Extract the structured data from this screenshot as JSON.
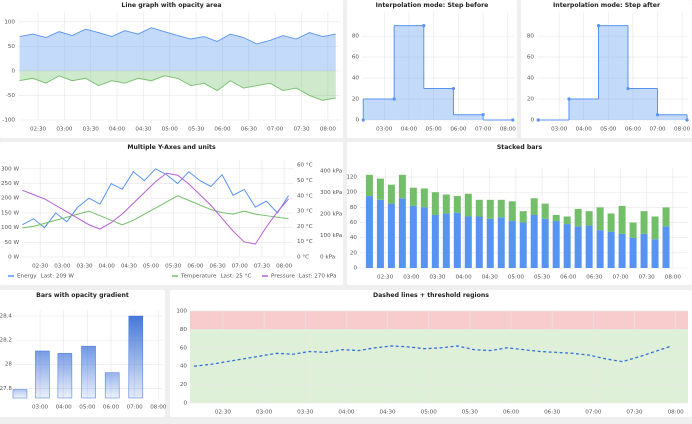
{
  "chart_data": [
    {
      "type": "area",
      "title": "Line graph with opacity area",
      "x": [
        2.15,
        2.4,
        2.65,
        2.9,
        3.15,
        3.4,
        3.65,
        3.9,
        4.15,
        4.4,
        4.65,
        4.9,
        5.15,
        5.4,
        5.65,
        5.9,
        6.15,
        6.4,
        6.65,
        6.9,
        7.15,
        7.4,
        7.65,
        7.9,
        8.15
      ],
      "series": [
        {
          "color": "#5794f2",
          "values": [
            70,
            75,
            68,
            80,
            72,
            85,
            78,
            70,
            82,
            75,
            88,
            80,
            72,
            65,
            70,
            60,
            75,
            68,
            55,
            62,
            72,
            65,
            78,
            70,
            75
          ]
        },
        {
          "color": "#73bf69",
          "values": [
            -20,
            -15,
            -25,
            -10,
            -20,
            -15,
            -30,
            -20,
            -25,
            -15,
            -20,
            -10,
            -15,
            -30,
            -25,
            -40,
            -20,
            -35,
            -30,
            -25,
            -40,
            -35,
            -50,
            -60,
            -55
          ]
        }
      ],
      "xlim": [
        2.12,
        8.23
      ],
      "ylim": [
        -100,
        120
      ],
      "yticks": [
        -100,
        -50,
        0,
        50,
        100
      ],
      "xticks": [
        {
          "value": 2.5,
          "label": "02:30"
        },
        {
          "value": 3,
          "label": "03:00"
        },
        {
          "value": 3.5,
          "label": "03:30"
        },
        {
          "value": 4,
          "label": "04:00"
        },
        {
          "value": 4.5,
          "label": "04:30"
        },
        {
          "value": 5,
          "label": "05:00"
        },
        {
          "value": 5.5,
          "label": "05:30"
        },
        {
          "value": 6,
          "label": "06:00"
        },
        {
          "value": 6.5,
          "label": "06:30"
        },
        {
          "value": 7,
          "label": "07:00"
        },
        {
          "value": 7.5,
          "label": "07:30"
        },
        {
          "value": 8,
          "label": "08:00"
        }
      ],
      "grid": true
    },
    {
      "type": "step",
      "interpolation": "before",
      "title": "Interpolation mode: Step before",
      "x": [
        2.15,
        3.4,
        4.6,
        5.8,
        7.0,
        8.2
      ],
      "series": [
        {
          "color": "#5794f2",
          "values": [
            0,
            20,
            90,
            30,
            5,
            0
          ]
        }
      ],
      "xlim": [
        2.1,
        8.25
      ],
      "ylim": [
        0,
        103
      ],
      "yticks": [
        0,
        20,
        40,
        60,
        80
      ],
      "xticks": [
        {
          "value": 3,
          "label": "03:00"
        },
        {
          "value": 4,
          "label": "04:00"
        },
        {
          "value": 5,
          "label": "05:00"
        },
        {
          "value": 6,
          "label": "06:00"
        },
        {
          "value": 7,
          "label": "07:00"
        },
        {
          "value": 8,
          "label": "08:00"
        }
      ],
      "grid": true
    },
    {
      "type": "step",
      "interpolation": "after",
      "title": "Interpolation mode: Step after",
      "x": [
        2.15,
        3.4,
        4.6,
        5.8,
        7.0,
        8.2
      ],
      "series": [
        {
          "color": "#5794f2",
          "values": [
            0,
            20,
            90,
            30,
            5,
            0
          ]
        }
      ],
      "xlim": [
        2.1,
        8.24
      ],
      "ylim": [
        0,
        103
      ],
      "yticks": [
        0,
        20,
        40,
        60,
        80
      ],
      "xticks": [
        {
          "value": 3,
          "label": "03:00"
        },
        {
          "value": 4,
          "label": "04:00"
        },
        {
          "value": 5,
          "label": "05:00"
        },
        {
          "value": 6,
          "label": "06:00"
        },
        {
          "value": 7,
          "label": "07:00"
        },
        {
          "value": 8,
          "label": "08:00"
        }
      ],
      "grid": true
    },
    {
      "type": "line",
      "title": "Multiple Y-Axes and units",
      "x": [
        2.1,
        2.35,
        2.6,
        2.85,
        3.1,
        3.35,
        3.6,
        3.85,
        4.1,
        4.35,
        4.6,
        4.85,
        5.1,
        5.35,
        5.6,
        5.85,
        6.1,
        6.35,
        6.6,
        6.85,
        7.1,
        7.35,
        7.6,
        7.85,
        8.1
      ],
      "series": [
        {
          "name": "Energy",
          "legend_label": "Last: 209 W",
          "color": "#5794f2",
          "values": [
            110,
            130,
            100,
            150,
            120,
            170,
            200,
            180,
            250,
            230,
            290,
            260,
            300,
            280,
            250,
            290,
            260,
            240,
            280,
            210,
            230,
            170,
            190,
            150,
            209
          ]
        },
        {
          "name": "Temperature",
          "legend_label": "Last: 25 °C",
          "axis": "y2",
          "color": "#73bf69",
          "values": [
            19,
            20,
            22,
            24,
            26,
            28,
            30,
            27,
            24,
            21,
            24,
            28,
            32,
            36,
            40,
            37,
            34,
            31,
            29,
            28,
            30,
            28,
            27,
            26,
            25
          ]
        },
        {
          "name": "Pressure",
          "legend_label": "Last: 270 kPa",
          "axis": "y3",
          "color": "#b65fd4",
          "values": [
            310,
            290,
            270,
            240,
            210,
            180,
            150,
            130,
            160,
            200,
            250,
            300,
            350,
            390,
            380,
            340,
            290,
            240,
            180,
            120,
            70,
            60,
            140,
            210,
            270
          ]
        }
      ],
      "xlim": [
        2.09,
        8.2
      ],
      "ylim": [
        0,
        330
      ],
      "yticks": [
        {
          "value": 0,
          "label": "0 W"
        },
        {
          "value": 50,
          "label": "50 W"
        },
        {
          "value": 100,
          "label": "100 W"
        },
        {
          "value": 150,
          "label": "150 W"
        },
        {
          "value": 200,
          "label": "200 W"
        },
        {
          "value": 250,
          "label": "250 W"
        },
        {
          "value": 300,
          "label": "300 W"
        }
      ],
      "y2lim": [
        0,
        63.4
      ],
      "y2ticks": [
        {
          "value": 0,
          "label": "0 °C"
        },
        {
          "value": 10,
          "label": "10 °C"
        },
        {
          "value": 20,
          "label": "20 °C"
        },
        {
          "value": 30,
          "label": "30 °C"
        },
        {
          "value": 40,
          "label": "40 °C"
        },
        {
          "value": 50,
          "label": "50 °C"
        },
        {
          "value": 60,
          "label": "60 °C"
        }
      ],
      "y3lim": [
        0,
        451
      ],
      "y3ticks": [
        {
          "value": 0,
          "label": "0 kPa"
        },
        {
          "value": 100,
          "label": "100 kPa"
        },
        {
          "value": 200,
          "label": "200 kPa"
        },
        {
          "value": 300,
          "label": "300 kPa"
        },
        {
          "value": 400,
          "label": "400 kPa"
        }
      ],
      "xticks": [
        {
          "value": 2.5,
          "label": "02:30"
        },
        {
          "value": 3,
          "label": "03:00"
        },
        {
          "value": 3.5,
          "label": "03:30"
        },
        {
          "value": 4,
          "label": "04:00"
        },
        {
          "value": 4.5,
          "label": "04:30"
        },
        {
          "value": 5,
          "label": "05:00"
        },
        {
          "value": 5.5,
          "label": "05:30"
        },
        {
          "value": 6,
          "label": "06:00"
        },
        {
          "value": 6.5,
          "label": "06:30"
        },
        {
          "value": 7,
          "label": "07:00"
        },
        {
          "value": 7.5,
          "label": "07:30"
        },
        {
          "value": 8,
          "label": "08:00"
        }
      ],
      "grid": true,
      "legend": "bottom"
    },
    {
      "type": "stacked_bar",
      "title": "Stacked bars",
      "x": [
        2.2,
        2.41,
        2.62,
        2.83,
        3.04,
        3.25,
        3.46,
        3.67,
        3.88,
        4.09,
        4.3,
        4.51,
        4.72,
        4.93,
        5.14,
        5.35,
        5.56,
        5.77,
        5.98,
        6.19,
        6.4,
        6.61,
        6.82,
        7.03,
        7.24,
        7.45,
        7.66,
        7.87
      ],
      "series": [
        {
          "color": "#5794f2",
          "values": [
            95,
            90,
            85,
            92,
            82,
            80,
            70,
            72,
            73,
            68,
            68,
            65,
            67,
            62,
            60,
            70,
            65,
            62,
            58,
            55,
            56,
            50,
            48,
            45,
            40,
            45,
            38,
            55
          ]
        },
        {
          "color": "#73bf69",
          "values": [
            28,
            28,
            25,
            31,
            24,
            25,
            30,
            25,
            22,
            30,
            22,
            25,
            23,
            26,
            15,
            22,
            20,
            8,
            10,
            23,
            19,
            30,
            24,
            37,
            20,
            30,
            30,
            25
          ]
        }
      ],
      "xlim": [
        2.02,
        8.29
      ],
      "ylim": [
        0,
        132
      ],
      "yticks": [
        0,
        20,
        40,
        60,
        80,
        100,
        120
      ],
      "xticks": [
        {
          "value": 2.5,
          "label": "02:30"
        },
        {
          "value": 3,
          "label": "03:00"
        },
        {
          "value": 3.5,
          "label": "03:30"
        },
        {
          "value": 4,
          "label": "04:00"
        },
        {
          "value": 4.5,
          "label": "04:30"
        },
        {
          "value": 5,
          "label": "05:00"
        },
        {
          "value": 5.5,
          "label": "05:30"
        },
        {
          "value": 6,
          "label": "06:00"
        },
        {
          "value": 6.5,
          "label": "06:30"
        },
        {
          "value": 7,
          "label": "07:00"
        },
        {
          "value": 7.5,
          "label": "07:30"
        },
        {
          "value": 8,
          "label": "08:00"
        }
      ],
      "grid": true
    },
    {
      "type": "bar",
      "title": "Bars with opacity gradient",
      "gradient": true,
      "x": [
        2.15,
        3.1,
        4.05,
        5.05,
        6.05,
        7.05
      ],
      "series": [
        {
          "color": "#3d71d9",
          "values": [
            27.79,
            28.11,
            28.09,
            28.15,
            27.93,
            28.4
          ]
        }
      ],
      "xlim": [
        1.94,
        8.2
      ],
      "ylim": [
        27.72,
        28.45
      ],
      "yticks": [
        27.8,
        28,
        28.2,
        28.4
      ],
      "xticks": [
        {
          "value": 3,
          "label": "03:00"
        },
        {
          "value": 4,
          "label": "04:00"
        },
        {
          "value": 5,
          "label": "05:00"
        },
        {
          "value": 6,
          "label": "06:00"
        },
        {
          "value": 7,
          "label": "07:00"
        },
        {
          "value": 8,
          "label": "08:00"
        }
      ],
      "grid": true
    },
    {
      "type": "line",
      "title": "Dashed lines + threshold regions",
      "x": [
        2.15,
        2.35,
        2.55,
        2.75,
        2.95,
        3.15,
        3.35,
        3.55,
        3.75,
        3.95,
        4.15,
        4.35,
        4.55,
        4.75,
        4.95,
        5.15,
        5.35,
        5.55,
        5.75,
        5.95,
        6.15,
        6.35,
        6.55,
        6.75,
        6.95,
        7.15,
        7.35,
        7.55,
        7.75,
        7.95
      ],
      "series": [
        {
          "color": "#3274d9",
          "dash": true,
          "values": [
            40,
            42,
            45,
            48,
            51,
            54,
            53,
            56,
            55,
            58,
            57,
            60,
            62,
            61,
            59,
            60,
            62,
            58,
            57,
            60,
            58,
            56,
            55,
            54,
            52,
            48,
            45,
            50,
            56,
            62
          ]
        }
      ],
      "thresholds": [
        {
          "from": 0,
          "to": 80,
          "color": "#dff0d8"
        },
        {
          "from": 80,
          "to": 100,
          "color": "#f8cccc"
        }
      ],
      "xlim": [
        2.1,
        8.15
      ],
      "ylim": [
        0,
        100
      ],
      "yticks": [
        0,
        20,
        40,
        60,
        80,
        100
      ],
      "xticks": [
        {
          "value": 2.5,
          "label": "02:30"
        },
        {
          "value": 3,
          "label": "03:00"
        },
        {
          "value": 3.5,
          "label": "03:30"
        },
        {
          "value": 4,
          "label": "04:00"
        },
        {
          "value": 4.5,
          "label": "04:30"
        },
        {
          "value": 5,
          "label": "05:00"
        },
        {
          "value": 5.5,
          "label": "05:30"
        },
        {
          "value": 6,
          "label": "06:00"
        },
        {
          "value": 6.5,
          "label": "06:30"
        },
        {
          "value": 7,
          "label": "07:00"
        },
        {
          "value": 7.5,
          "label": "07:30"
        },
        {
          "value": 8,
          "label": "08:00"
        }
      ],
      "grid": true
    }
  ]
}
